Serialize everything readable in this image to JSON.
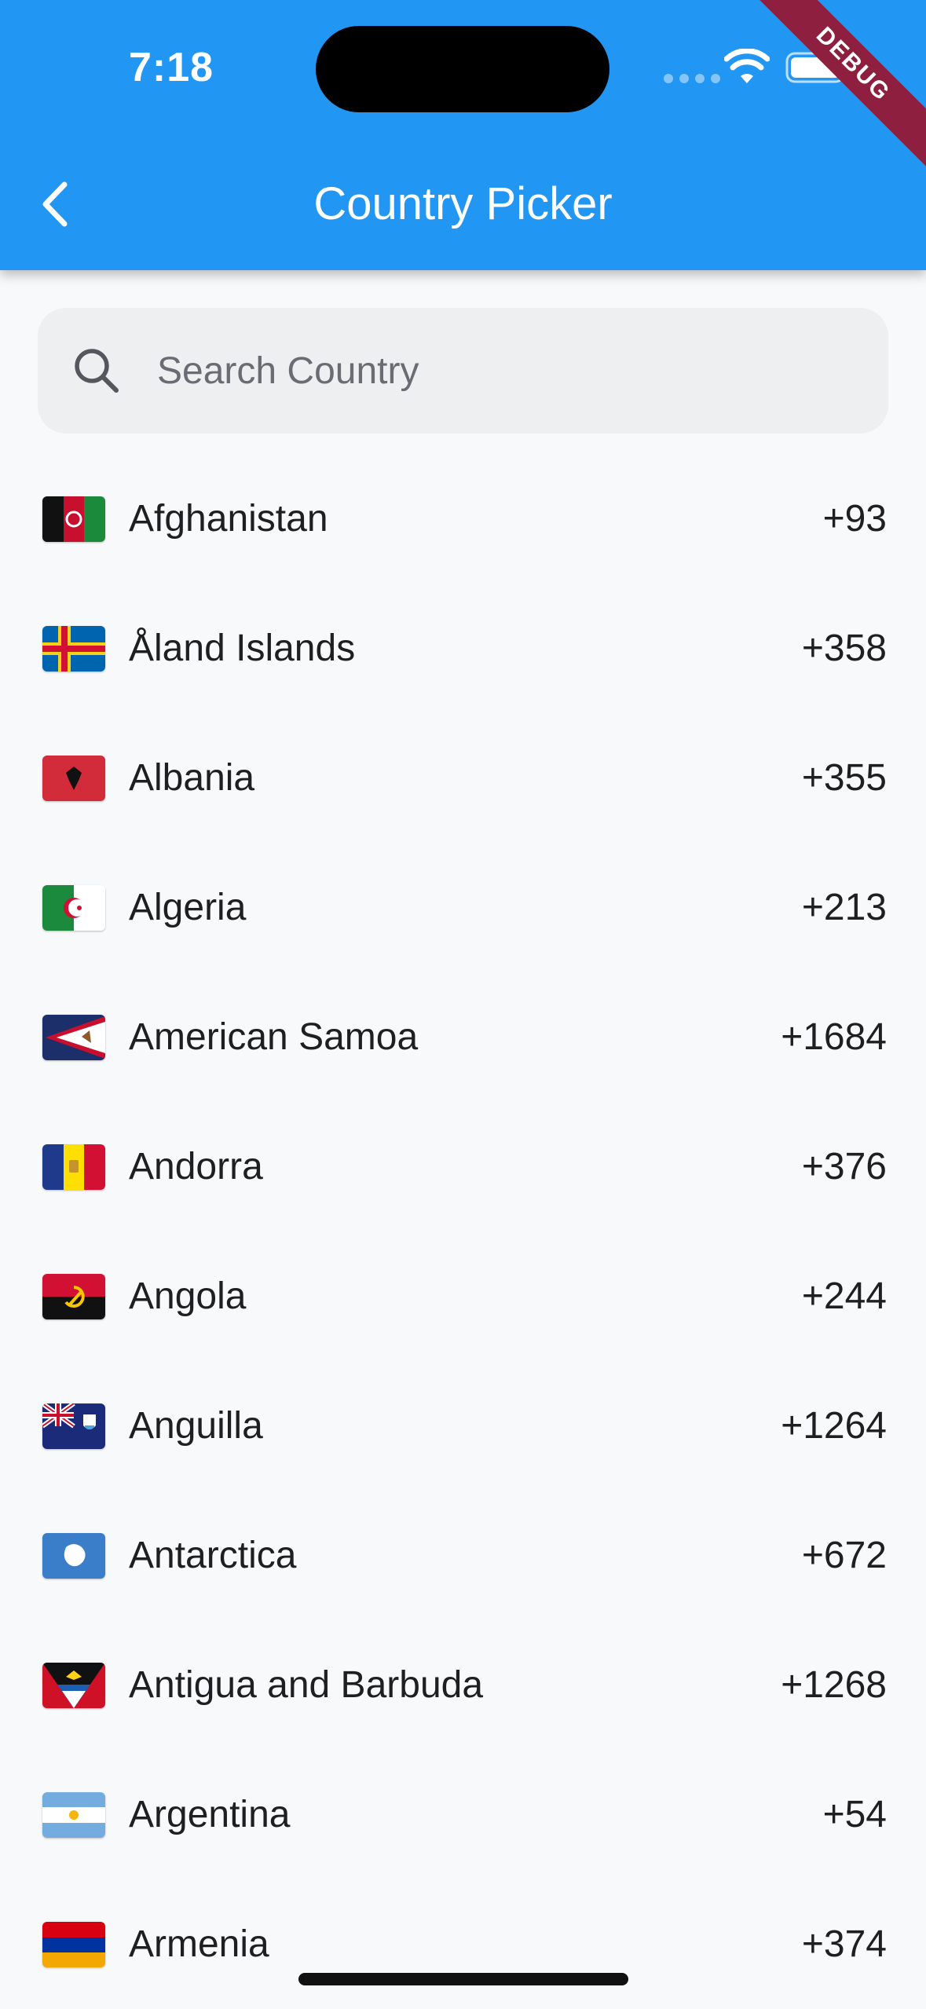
{
  "status_bar": {
    "time": "7:18",
    "debug_label": "DEBUG"
  },
  "app_bar": {
    "title": "Country Picker",
    "back_icon": "chevron-left-icon"
  },
  "search": {
    "placeholder": "Search Country",
    "value": "",
    "icon": "search-icon"
  },
  "countries": [
    {
      "name": "Afghanistan",
      "code": "+93"
    },
    {
      "name": "Åland Islands",
      "code": "+358"
    },
    {
      "name": "Albania",
      "code": "+355"
    },
    {
      "name": "Algeria",
      "code": "+213"
    },
    {
      "name": "American Samoa",
      "code": "+1684"
    },
    {
      "name": "Andorra",
      "code": "+376"
    },
    {
      "name": "Angola",
      "code": "+244"
    },
    {
      "name": "Anguilla",
      "code": "+1264"
    },
    {
      "name": "Antarctica",
      "code": "+672"
    },
    {
      "name": "Antigua and Barbuda",
      "code": "+1268"
    },
    {
      "name": "Argentina",
      "code": "+54"
    },
    {
      "name": "Armenia",
      "code": "+374"
    }
  ],
  "colors": {
    "app_bar": "#2196f3",
    "background": "#f8f9fb",
    "search_fill": "#eeeff1",
    "debug_banner": "#8e1f3f"
  }
}
